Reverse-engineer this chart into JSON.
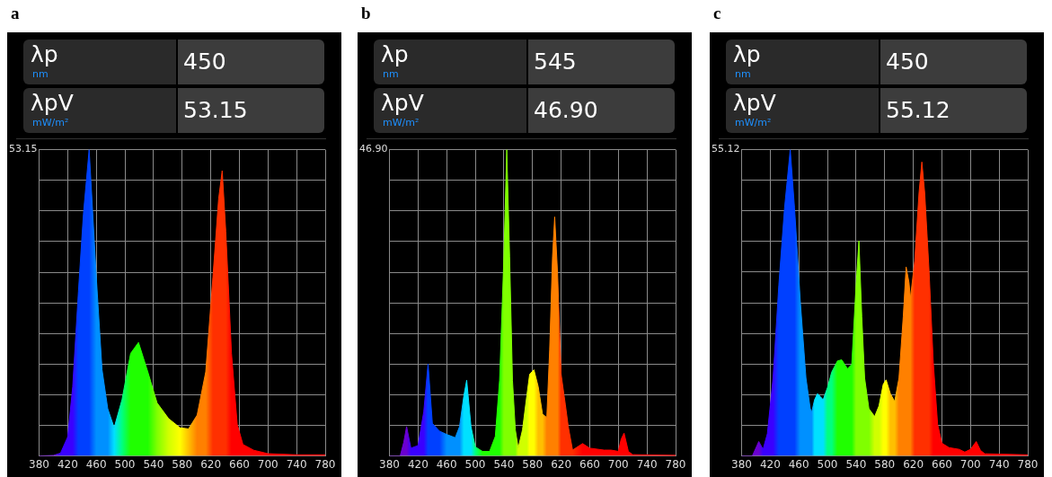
{
  "chart_data": [
    {
      "type": "area",
      "title": "a",
      "annotations": [
        "λp",
        "nm",
        "450",
        "λpV",
        "mW/m²",
        "53.15"
      ],
      "xlim": [
        380,
        780
      ],
      "xticks": [
        380,
        420,
        460,
        500,
        540,
        580,
        620,
        660,
        700,
        740,
        780
      ],
      "ylim": [
        0,
        53.15
      ],
      "yticks": [
        {
          "value": 0,
          "label": null
        },
        {
          "value": 5.315,
          "label": null
        },
        {
          "value": 10.63,
          "label": null
        },
        {
          "value": 15.945,
          "label": null
        },
        {
          "value": 21.26,
          "label": null
        },
        {
          "value": 26.575,
          "label": null
        },
        {
          "value": 31.89,
          "label": null
        },
        {
          "value": 37.205,
          "label": null
        },
        {
          "value": 42.52,
          "label": null
        },
        {
          "value": 47.835,
          "label": null
        },
        53.15
      ],
      "grid": true,
      "x": [
        380,
        400,
        410,
        420,
        427,
        435,
        442,
        450,
        460,
        468,
        476,
        485,
        496,
        508,
        519,
        532,
        545,
        561,
        577,
        589,
        601,
        613,
        623,
        631,
        636,
        641,
        649,
        657,
        665,
        680,
        700,
        740,
        780
      ],
      "values": [
        0,
        0.1,
        0.5,
        3.3,
        12,
        28.5,
        42,
        53.15,
        31,
        15,
        8.2,
        4.9,
        9.8,
        17.8,
        19.7,
        14.6,
        9.2,
        6.5,
        4.9,
        4.7,
        7.1,
        14.6,
        31,
        44.6,
        49.5,
        39,
        17.8,
        5.5,
        2,
        1,
        0.4,
        0.2,
        0.2
      ],
      "colors": [
        "#6a00d0",
        "#6a00d0",
        "#3a00ff",
        "#3a00ff",
        "#3a00ff",
        "#0040ff",
        "#0040ff",
        "#0040ff",
        "#0090ff",
        "#0090ff",
        "#0090ff",
        "#00e0ff",
        "#00ff80",
        "#20ff00",
        "#20ff00",
        "#20ff00",
        "#80ff00",
        "#d0ff00",
        "#ffff00",
        "#ffc000",
        "#ff8000",
        "#ff8000",
        "#ff3000",
        "#ff3000",
        "#ff3000",
        "#ff3000",
        "#ff0000",
        "#ff0000",
        "#ff0000",
        "#ff0000",
        "#ff0000",
        "#ff0000",
        "#ff0000"
      ]
    },
    {
      "type": "area",
      "title": "b",
      "annotations": [
        "λp",
        "nm",
        "545",
        "λpV",
        "mW/m²",
        "46.90"
      ],
      "xlim": [
        380,
        780
      ],
      "xticks": [
        380,
        420,
        460,
        500,
        540,
        580,
        620,
        660,
        700,
        740,
        780
      ],
      "ylim": [
        0,
        46.9
      ],
      "yticks": [
        {
          "value": 0,
          "label": null
        },
        {
          "value": 4.69,
          "label": null
        },
        {
          "value": 9.38,
          "label": null
        },
        {
          "value": 14.07,
          "label": null
        },
        {
          "value": 18.76,
          "label": null
        },
        {
          "value": 23.45,
          "label": null
        },
        {
          "value": 28.14,
          "label": null
        },
        {
          "value": 32.83,
          "label": null
        },
        {
          "value": 37.52,
          "label": null
        },
        {
          "value": 42.21,
          "label": null
        },
        {
          "value": 46.9,
          "label": "46.90"
        }
      ],
      "grid": true,
      "x": [
        380,
        395,
        400,
        404,
        410,
        420,
        428,
        434,
        440,
        450,
        460,
        472,
        478,
        484,
        488,
        494,
        500,
        510,
        520,
        528,
        534,
        540,
        544,
        548,
        552,
        556,
        560,
        566,
        572,
        576,
        582,
        588,
        594,
        600,
        604,
        608,
        611,
        615,
        620,
        626,
        630,
        636,
        650,
        660,
        680,
        690,
        700,
        704,
        708,
        714,
        720,
        780
      ],
      "values": [
        0,
        0,
        2.1,
        4.5,
        1.2,
        1.6,
        6.8,
        14.1,
        5,
        3.8,
        3.3,
        2.8,
        4.5,
        9.2,
        11.6,
        4.5,
        1.4,
        0.7,
        0.7,
        3,
        11.6,
        30.5,
        46.9,
        30.5,
        11.6,
        4,
        1.2,
        4,
        9.2,
        12.5,
        13.2,
        10.6,
        6.4,
        5.9,
        16.3,
        30.5,
        36.6,
        28,
        12.5,
        7.8,
        4.5,
        0.9,
        1.9,
        1.2,
        0.9,
        0.9,
        0.7,
        2.6,
        3.5,
        0.7,
        0.2,
        0.1
      ],
      "colors": [
        "#6a00d0",
        "#6a00d0",
        "#6a00d0",
        "#6a00d0",
        "#3a00ff",
        "#3a00ff",
        "#3a00ff",
        "#0040ff",
        "#0040ff",
        "#0040ff",
        "#0090ff",
        "#0090ff",
        "#0090ff",
        "#00e0ff",
        "#00e0ff",
        "#00e0ff",
        "#00ff80",
        "#20ff00",
        "#20ff00",
        "#20ff00",
        "#20ff00",
        "#80ff00",
        "#80ff00",
        "#80ff00",
        "#80ff00",
        "#80ff00",
        "#d0ff00",
        "#d0ff00",
        "#d0ff00",
        "#ffff00",
        "#ffff00",
        "#ffc000",
        "#ffc000",
        "#ff8000",
        "#ff8000",
        "#ff8000",
        "#ff8000",
        "#ff8000",
        "#ff3000",
        "#ff3000",
        "#ff3000",
        "#ff3000",
        "#ff0000",
        "#ff0000",
        "#ff0000",
        "#ff0000",
        "#ff0000",
        "#ff0000",
        "#ff0000",
        "#ff0000",
        "#ff0000",
        "#ff0000"
      ]
    },
    {
      "type": "area",
      "title": "c",
      "annotations": [
        "λp",
        "nm",
        "450",
        "λpV",
        "mW/m²",
        "55.12"
      ],
      "xlim": [
        380,
        780
      ],
      "xticks": [
        380,
        420,
        460,
        500,
        540,
        580,
        620,
        660,
        700,
        740,
        780
      ],
      "ylim": [
        0,
        55.12
      ],
      "yticks": [
        {
          "value": 0,
          "label": null
        },
        {
          "value": 5.512,
          "label": null
        },
        {
          "value": 11.024,
          "label": null
        },
        {
          "value": 16.536,
          "label": null
        },
        {
          "value": 22.048,
          "label": null
        },
        {
          "value": 27.56,
          "label": null
        },
        {
          "value": 33.072,
          "label": null
        },
        {
          "value": 38.584,
          "label": null
        },
        {
          "value": 44.096,
          "label": null
        },
        {
          "value": 49.608,
          "label": null
        },
        55.12
      ],
      "grid": true,
      "x": [
        380,
        395,
        404,
        410,
        416,
        424,
        432,
        440,
        448,
        454,
        462,
        470,
        476,
        478,
        482,
        486,
        490,
        494,
        500,
        506,
        514,
        520,
        528,
        534,
        540,
        544,
        548,
        552,
        558,
        566,
        572,
        578,
        582,
        588,
        594,
        600,
        606,
        610,
        614,
        616,
        622,
        628,
        632,
        636,
        642,
        648,
        654,
        660,
        670,
        684,
        692,
        700,
        708,
        714,
        720,
        780
      ],
      "values": [
        0,
        0,
        2.6,
        1.2,
        4,
        14,
        30.7,
        44.6,
        55.12,
        44.6,
        27.9,
        14,
        8.5,
        7.9,
        10.1,
        11.2,
        10.7,
        10.1,
        12.3,
        15.1,
        17.1,
        17.3,
        15.7,
        16.5,
        30.7,
        38.7,
        25.1,
        14,
        8.5,
        7.1,
        9,
        12.9,
        13.7,
        11.2,
        9.8,
        14,
        25.1,
        34,
        31.2,
        28.4,
        35.1,
        47.3,
        52.9,
        47.3,
        33.4,
        16.8,
        5.7,
        2.3,
        1.5,
        1.2,
        0.7,
        1.2,
        2.6,
        1,
        0.4,
        0.2
      ],
      "colors": [
        "#6a00d0",
        "#6a00d0",
        "#6a00d0",
        "#3a00ff",
        "#3a00ff",
        "#3a00ff",
        "#0040ff",
        "#0040ff",
        "#0040ff",
        "#0040ff",
        "#0090ff",
        "#0090ff",
        "#0090ff",
        "#0090ff",
        "#00e0ff",
        "#00e0ff",
        "#00e0ff",
        "#00e0ff",
        "#00ff80",
        "#00ff80",
        "#20ff00",
        "#20ff00",
        "#20ff00",
        "#20ff00",
        "#80ff00",
        "#80ff00",
        "#80ff00",
        "#80ff00",
        "#80ff00",
        "#d0ff00",
        "#d0ff00",
        "#ffff00",
        "#ffff00",
        "#ffc000",
        "#ffc000",
        "#ff8000",
        "#ff8000",
        "#ff8000",
        "#ff8000",
        "#ff8000",
        "#ff3000",
        "#ff3000",
        "#ff3000",
        "#ff3000",
        "#ff3000",
        "#ff0000",
        "#ff0000",
        "#ff0000",
        "#ff0000",
        "#ff0000",
        "#ff0000",
        "#ff0000",
        "#ff0000",
        "#ff0000",
        "#ff0000",
        "#ff0000"
      ]
    }
  ]
}
